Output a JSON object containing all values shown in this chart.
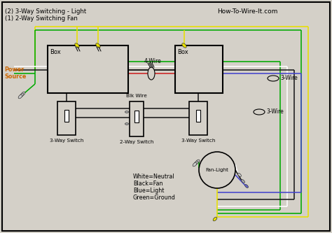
{
  "bg_color": "#d4d0c8",
  "title_line1": "(2) 3-Way Switching - Light",
  "title_line2": "(1) 2-Way Switching Fan",
  "watermark": "How-To-Wire-It.com",
  "legend": [
    "White=Neutral",
    "Black=Fan",
    "Blue=Light",
    "Green=Ground"
  ],
  "labels": {
    "power_source": "Power\nSource",
    "box1": "Box",
    "box2": "Box",
    "switch1": "3-Way Switch",
    "switch2": "2-Way Switch",
    "switch3": "3-Way Switch",
    "fan_light": "Fan-Light",
    "four_wire": "4-Wire",
    "blk_wire": "Blk Wire",
    "three_wire1": "3-Wire",
    "three_wire2": "3-Wire"
  },
  "colors": {
    "white": "#ffffff",
    "black": "#1a1a1a",
    "yellow": "#e8e000",
    "green": "#00aa00",
    "blue": "#4444cc",
    "red": "#cc2222",
    "gray": "#888888",
    "dark_gray": "#555555"
  }
}
